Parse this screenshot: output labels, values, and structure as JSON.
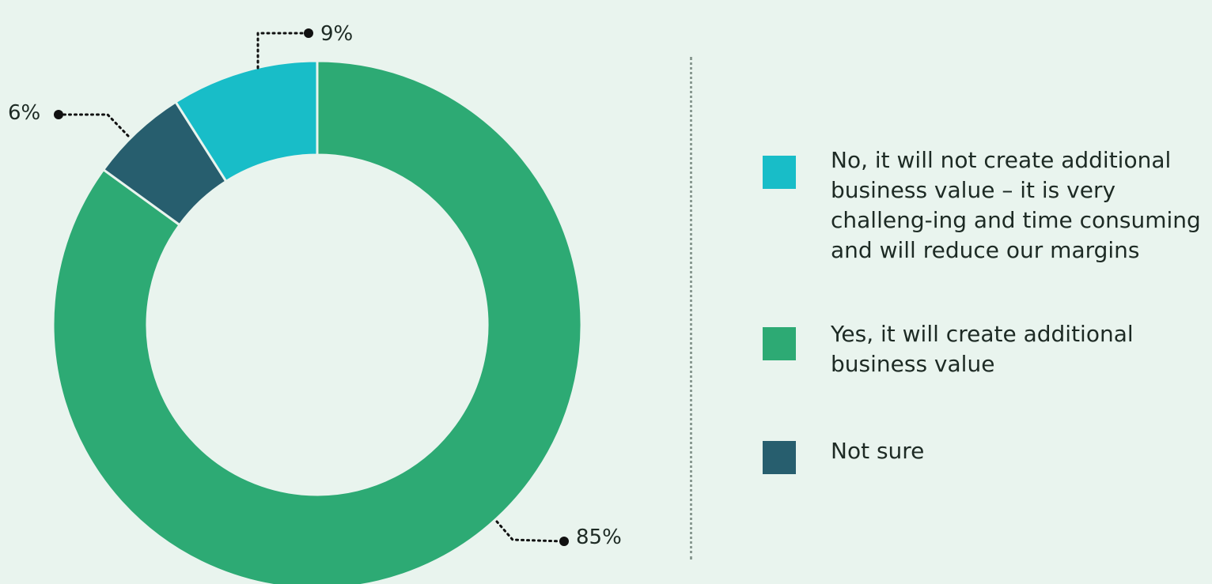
{
  "chart_data": {
    "type": "pie",
    "style": "donut",
    "slices": [
      {
        "label": "Yes, it will create additional business value",
        "value": 85,
        "display": "85%",
        "color": "#2daa74"
      },
      {
        "label": "Not sure",
        "value": 6,
        "display": "6%",
        "color": "#275e6e"
      },
      {
        "label": "No, it will not create additional business value – it is very challeng-ing and time consuming and will reduce our margins",
        "value": 9,
        "display": "9%",
        "color": "#18bdc8"
      }
    ]
  },
  "legend": {
    "items": [
      {
        "label": "No, it will not create additional business value – it is very challeng-ing and time consuming and will reduce our margins",
        "color": "#18bdc8"
      },
      {
        "label": "Yes, it will create additional business value",
        "color": "#2daa74"
      },
      {
        "label": "Not sure",
        "color": "#275e6e"
      }
    ]
  }
}
